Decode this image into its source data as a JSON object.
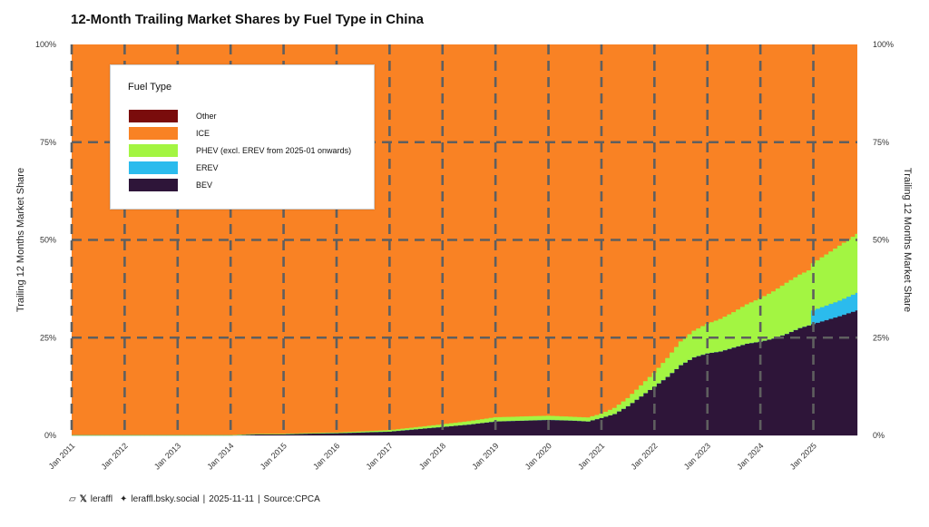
{
  "chart_data": {
    "type": "area",
    "stacked": true,
    "title": "12-Month Trailing Market Shares by Fuel Type in China",
    "ylabel": "Trailing 12 Months Market Share",
    "ylabel_right": "Trailing 12 Months Market Share",
    "xlabel": "",
    "ylim": [
      0,
      100
    ],
    "y_ticks": [
      "0%",
      "25%",
      "50%",
      "75%",
      "100%"
    ],
    "y_tick_values": [
      0,
      25,
      50,
      75,
      100
    ],
    "x_ticks": [
      "Jan 2011",
      "Jan 2012",
      "Jan 2013",
      "Jan 2014",
      "Jan 2015",
      "Jan 2016",
      "Jan 2017",
      "Jan 2018",
      "Jan 2019",
      "Jan 2020",
      "Jan 2021",
      "Jan 2022",
      "Jan 2023",
      "Jan 2024",
      "Jan 2025"
    ],
    "x_tick_values": [
      2011,
      2012,
      2013,
      2014,
      2015,
      2016,
      2017,
      2018,
      2019,
      2020,
      2021,
      2022,
      2023,
      2024,
      2025
    ],
    "xlim": [
      2011.0,
      2025.83
    ],
    "grid": "dashed",
    "legend_title": "Fuel Type",
    "legend_position": "top-left",
    "series": [
      {
        "name": "Other",
        "color": "#7a0c0c",
        "values": [
          [
            2011.0,
            0
          ],
          [
            2025.83,
            0
          ]
        ]
      },
      {
        "name": "ICE",
        "color": "#f98224",
        "values": "remainder"
      },
      {
        "name": "PHEV (excl. EREV from 2025-01 onwards)",
        "color": "#a3f542",
        "values": [
          [
            2011.0,
            0
          ],
          [
            2014.0,
            0
          ],
          [
            2016.0,
            0.1
          ],
          [
            2017.0,
            0.3
          ],
          [
            2018.0,
            0.6
          ],
          [
            2018.5,
            0.8
          ],
          [
            2019.0,
            1.0
          ],
          [
            2019.5,
            1.0
          ],
          [
            2020.0,
            1.0
          ],
          [
            2020.5,
            0.9
          ],
          [
            2021.0,
            1.0
          ],
          [
            2021.5,
            2.0
          ],
          [
            2022.0,
            3.5
          ],
          [
            2022.5,
            6.0
          ],
          [
            2023.0,
            7.5
          ],
          [
            2023.5,
            9.0
          ],
          [
            2024.0,
            11.0
          ],
          [
            2024.5,
            13.0
          ],
          [
            2024.92,
            14.0
          ],
          [
            2025.0,
            12.0
          ],
          [
            2025.25,
            13.0
          ],
          [
            2025.5,
            14.0
          ],
          [
            2025.83,
            15.0
          ]
        ]
      },
      {
        "name": "EREV",
        "color": "#2bbbed",
        "values": [
          [
            2011.0,
            0
          ],
          [
            2024.92,
            0
          ],
          [
            2025.0,
            3.5
          ],
          [
            2025.5,
            4.0
          ],
          [
            2025.83,
            4.5
          ]
        ]
      },
      {
        "name": "BEV",
        "color": "#2e1539",
        "values": [
          [
            2011.0,
            0
          ],
          [
            2014.0,
            0
          ],
          [
            2014.5,
            0.3
          ],
          [
            2015.0,
            0.3
          ],
          [
            2015.5,
            0.5
          ],
          [
            2016.0,
            0.6
          ],
          [
            2016.5,
            0.8
          ],
          [
            2017.0,
            1.0
          ],
          [
            2017.5,
            1.6
          ],
          [
            2018.0,
            2.2
          ],
          [
            2018.5,
            2.8
          ],
          [
            2019.0,
            3.6
          ],
          [
            2019.5,
            3.8
          ],
          [
            2020.0,
            4.0
          ],
          [
            2020.5,
            3.8
          ],
          [
            2020.75,
            3.6
          ],
          [
            2021.0,
            4.5
          ],
          [
            2021.25,
            5.5
          ],
          [
            2021.5,
            7.5
          ],
          [
            2021.75,
            10.0
          ],
          [
            2022.0,
            12.5
          ],
          [
            2022.25,
            15.0
          ],
          [
            2022.5,
            18.0
          ],
          [
            2022.75,
            20.0
          ],
          [
            2023.0,
            21.0
          ],
          [
            2023.25,
            21.5
          ],
          [
            2023.5,
            22.5
          ],
          [
            2023.75,
            23.5
          ],
          [
            2024.0,
            24.0
          ],
          [
            2024.25,
            24.8
          ],
          [
            2024.5,
            26.0
          ],
          [
            2024.75,
            27.5
          ],
          [
            2025.0,
            28.5
          ],
          [
            2025.25,
            29.5
          ],
          [
            2025.5,
            30.5
          ],
          [
            2025.83,
            32.0
          ]
        ]
      }
    ]
  },
  "footer": {
    "handle": "leraffl",
    "bsky": "leraffl.bsky.social",
    "date": "2025-11-11",
    "source": "Source:CPCA"
  }
}
